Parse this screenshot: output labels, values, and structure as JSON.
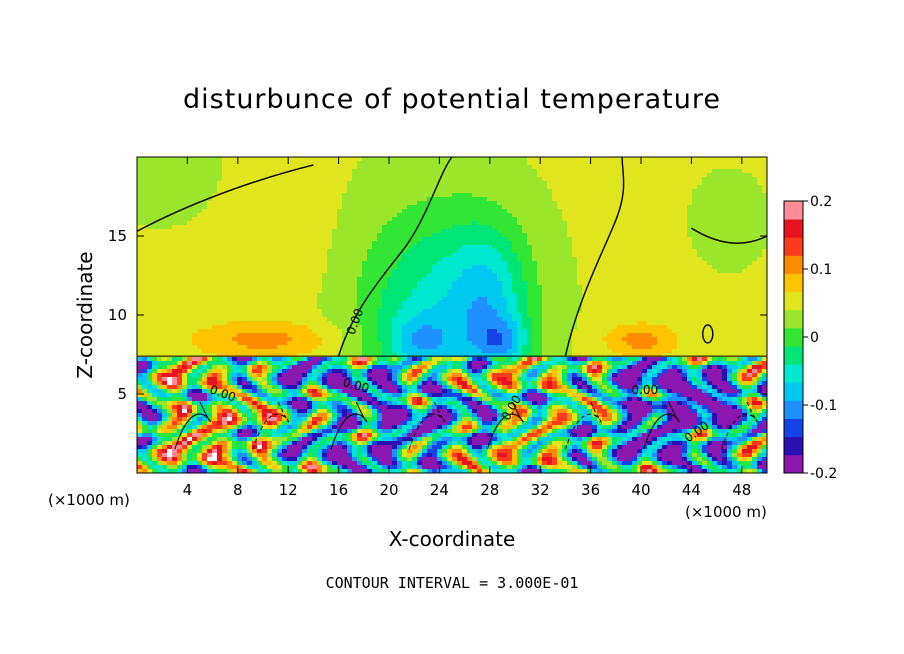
{
  "chart_data": {
    "type": "heatmap",
    "title": "disturbunce of potential temperature",
    "xlabel": "X-coordinate",
    "ylabel": "Z-coordinate",
    "x_unit": "(×1000 m)",
    "x_ticks": [
      4,
      8,
      12,
      16,
      20,
      24,
      28,
      32,
      36,
      40,
      44,
      48
    ],
    "x_range": [
      0,
      50
    ],
    "y_ticks": [
      5,
      10,
      15
    ],
    "y_range": [
      0,
      20
    ],
    "colorbar": {
      "ticks": [
        0.2,
        0.1,
        0,
        -0.1,
        -0.2
      ],
      "tick_labels": [
        "0.2",
        "0.1",
        "0",
        "-0.1",
        "-0.2"
      ],
      "range": [
        -0.2,
        0.2
      ],
      "colors": [
        "#8a18b0",
        "#2a10b0",
        "#1444e8",
        "#1e90ff",
        "#00c8f0",
        "#00e8d0",
        "#00e676",
        "#33e633",
        "#9ae62b",
        "#e0e61e",
        "#ffc400",
        "#ff8c00",
        "#ff3b1e",
        "#e6141e",
        "#ff8c96"
      ]
    },
    "contour_labels": [
      "0.00",
      "0.00",
      "0.00",
      "0.00",
      "0.00",
      "0.00"
    ],
    "footnote": "CONTOUR INTERVAL = 3.000E-01"
  }
}
